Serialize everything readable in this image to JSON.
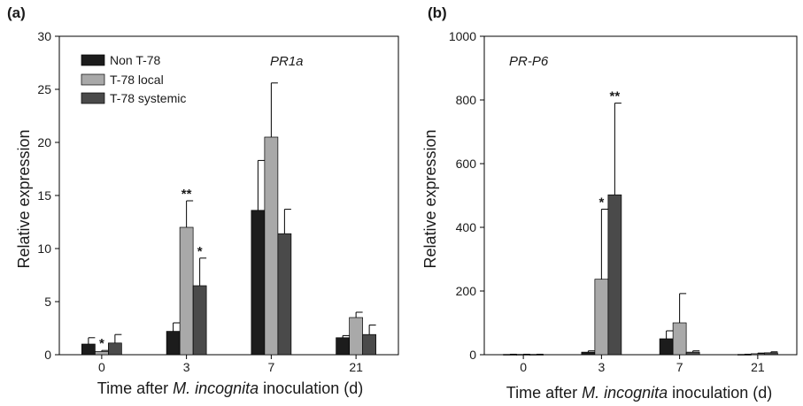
{
  "colors": {
    "non_t78": "#1c1c1c",
    "t78_local": "#a9a9a9",
    "t78_systemic": "#4a4a4a"
  },
  "chart_data": [
    {
      "panel_label": "(a)",
      "type": "bar",
      "gene_label": "PR1a",
      "ylabel": "Relative expression",
      "xlabel_parts": [
        "Time after ",
        "M. incognita",
        " inoculation (d)"
      ],
      "categories": [
        "0",
        "3",
        "7",
        "21"
      ],
      "ylim": [
        0,
        30
      ],
      "yticks": [
        0,
        5,
        10,
        15,
        20,
        25,
        30
      ],
      "legend": "top-left",
      "series": [
        {
          "name": "Non T-78",
          "values": [
            1.0,
            2.2,
            13.6,
            1.6
          ],
          "errors": [
            0.6,
            0.8,
            4.7,
            0.2
          ]
        },
        {
          "name": "T-78 local",
          "values": [
            0.3,
            12.0,
            20.5,
            3.5
          ],
          "errors": [
            0.1,
            2.5,
            5.1,
            0.5
          ]
        },
        {
          "name": "T-78 systemic",
          "values": [
            1.1,
            6.5,
            11.4,
            1.9
          ],
          "errors": [
            0.8,
            2.6,
            2.3,
            0.9
          ]
        }
      ],
      "annotations": [
        {
          "category": "0",
          "series": "T-78 local",
          "text": "*"
        },
        {
          "category": "3",
          "series": "T-78 local",
          "text": "**"
        },
        {
          "category": "3",
          "series": "T-78 systemic",
          "text": "*"
        }
      ]
    },
    {
      "panel_label": "(b)",
      "type": "bar",
      "gene_label": "PR-P6",
      "ylabel": "Relative expression",
      "xlabel_parts": [
        "Time after ",
        "M. incognita",
        " inoculation (d)"
      ],
      "categories": [
        "0",
        "3",
        "7",
        "21"
      ],
      "ylim": [
        0,
        1000
      ],
      "yticks": [
        0,
        200,
        400,
        600,
        800,
        1000
      ],
      "series": [
        {
          "name": "Non T-78",
          "values": [
            1,
            8,
            50,
            1
          ],
          "errors": [
            0.5,
            4,
            25,
            0.5
          ]
        },
        {
          "name": "T-78 local",
          "values": [
            1,
            237,
            100,
            3
          ],
          "errors": [
            0.5,
            220,
            92,
            2
          ]
        },
        {
          "name": "T-78 systemic",
          "values": [
            1,
            502,
            8,
            6
          ],
          "errors": [
            0.5,
            288,
            4,
            3
          ]
        }
      ],
      "annotations": [
        {
          "category": "3",
          "series": "T-78 local",
          "text": "*"
        },
        {
          "category": "3",
          "series": "T-78 systemic",
          "text": "**"
        }
      ]
    }
  ]
}
